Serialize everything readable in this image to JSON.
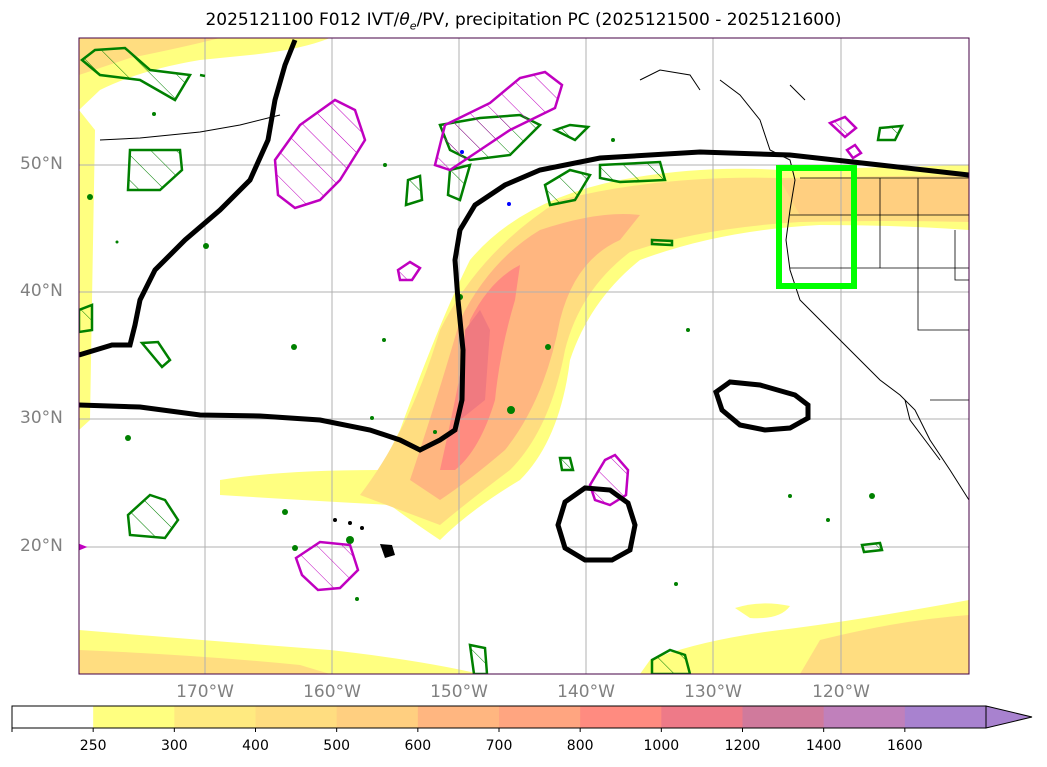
{
  "title": "2025121100 F012 IVT/θe/PV, precipitation PC (2025121500 - 2025121600)",
  "title_parts": {
    "prefix": "2025121100 F012 IVT/",
    "theta": "θ",
    "sub": "e",
    "suffix": "/PV, precipitation PC (2025121500 - 2025121600)"
  },
  "axes": {
    "lat_labels": [
      "50°N",
      "40°N",
      "30°N",
      "20°N"
    ],
    "lon_labels": [
      "170°W",
      "160°W",
      "150°W",
      "140°W",
      "130°W",
      "120°W"
    ]
  },
  "colorbar": {
    "levels": [
      "250",
      "300",
      "400",
      "500",
      "600",
      "700",
      "800",
      "1000",
      "1200",
      "1400",
      "1600"
    ],
    "colors": [
      "#ffffff",
      "#ffff80",
      "#ffea80",
      "#ffdd80",
      "#ffcf80",
      "#ffb680",
      "#ffa580",
      "#ff8b80",
      "#ee7a88",
      "#d07a9c",
      "#c080bb",
      "#a882cf"
    ],
    "extend": "max"
  },
  "colors": {
    "ivt_low": "#ffff80",
    "ivt_mid": "#ffdd80",
    "ivt_high": "#ffa580",
    "ivt_max": "#f08080",
    "theta_e_contour": "#000000",
    "pv_pos": "#008000",
    "pv_neg": "#c000c0",
    "region_box": "#00ff00",
    "grid": "#b0b0b0",
    "coastline": "#000000"
  }
}
